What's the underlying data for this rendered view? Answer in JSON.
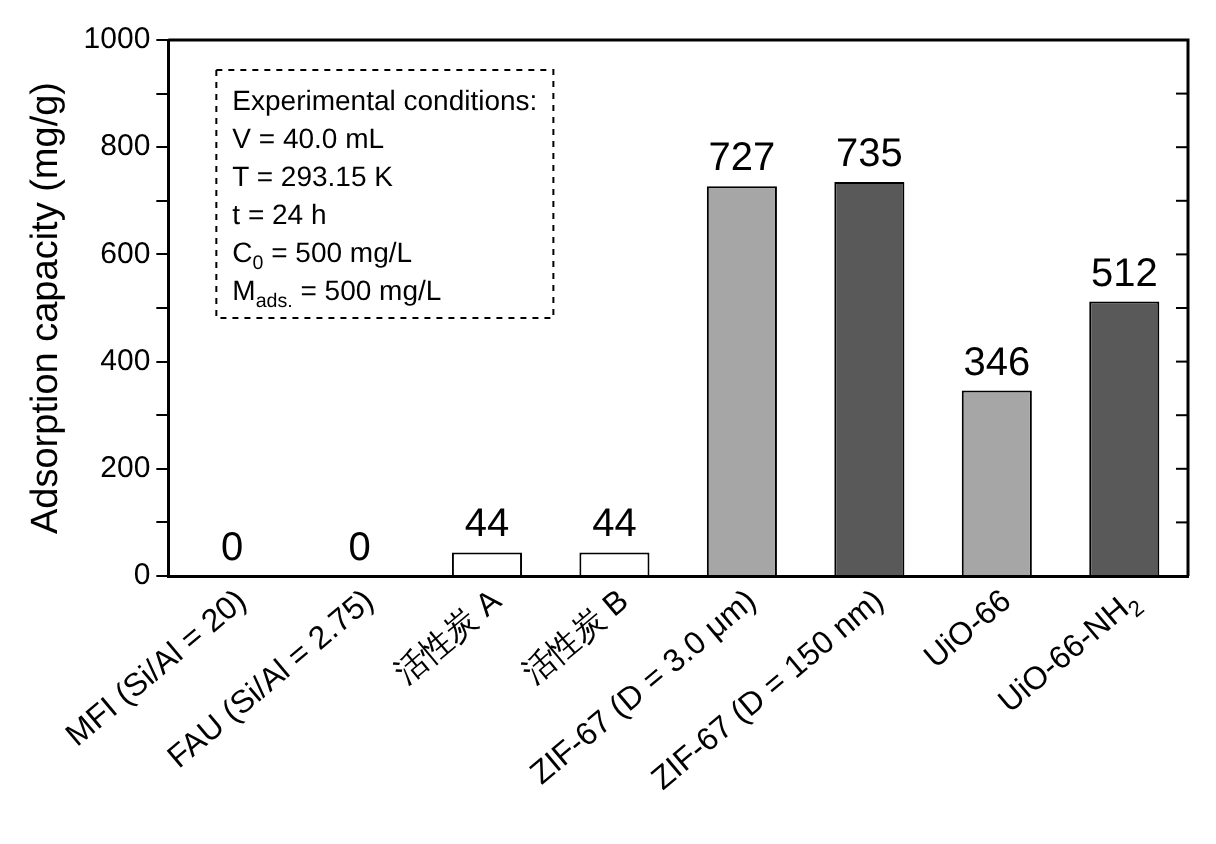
{
  "chart_data": {
    "type": "bar",
    "ylabel": "Adsorption capacity (mg/g)",
    "categories": [
      "MFI (Si/Al = 20)",
      "FAU (Si/Al = 2.75)",
      "活性炭 A",
      "活性炭 B",
      "ZIF-67 (D = 3.0 μm)",
      "ZIF-67 (D = 150 nm)",
      "UiO-66",
      "UiO-66-NH$_{2}$"
    ],
    "values": [
      0,
      0,
      44,
      44,
      727,
      735,
      346,
      512
    ],
    "colors": [
      "#ffffff",
      "#ffffff",
      "#ffffff",
      "#ffffff",
      "#a6a6a6",
      "#595959",
      "#a6a6a6",
      "#595959"
    ],
    "ylim": [
      0,
      1000
    ],
    "yticks": [
      0,
      {
        "value": 100,
        "label": null
      },
      200,
      {
        "value": 300,
        "label": null
      },
      400,
      {
        "value": 500,
        "label": null
      },
      600,
      {
        "value": 700,
        "label": null
      },
      800,
      {
        "value": 900,
        "label": null
      },
      1000
    ],
    "data_labels": true,
    "annotations": [
      "Experimental conditions:",
      "V = 40.0 mL",
      "T = 293.15 K",
      "t = 24 h",
      "C$_{0}$ = 500 mg/L",
      "M$_{ads.}$ = 500 mg/L"
    ]
  }
}
